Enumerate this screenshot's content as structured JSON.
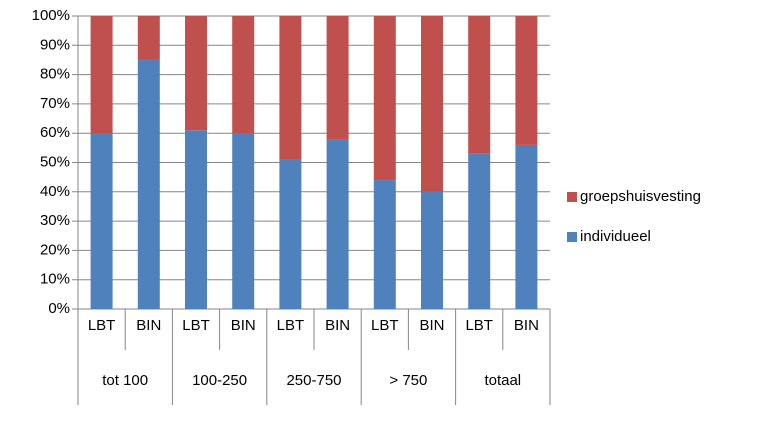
{
  "chart_data": {
    "type": "stacked_bar",
    "categories": [
      "LBT",
      "BIN",
      "LBT",
      "BIN",
      "LBT",
      "BIN",
      "LBT",
      "BIN",
      "LBT",
      "BIN"
    ],
    "groups": [
      "tot 100",
      "100-250",
      "250-750",
      "> 750",
      "totaal"
    ],
    "series": [
      {
        "name": "individueel",
        "color": "#4f81bd",
        "values": [
          60,
          85,
          61,
          60,
          51,
          58,
          44,
          40,
          53,
          56
        ]
      },
      {
        "name": "groepshuisvesting",
        "color": "#c0504d",
        "values": [
          40,
          15,
          39,
          40,
          49,
          42,
          56,
          60,
          47,
          44
        ]
      }
    ],
    "ylim": [
      0,
      100
    ],
    "yticks": [
      {
        "value": 0,
        "label": "0%"
      },
      {
        "value": 10,
        "label": "10%"
      },
      {
        "value": 20,
        "label": "20%"
      },
      {
        "value": 30,
        "label": "30%"
      },
      {
        "value": 40,
        "label": "40%"
      },
      {
        "value": 50,
        "label": "50%"
      },
      {
        "value": 60,
        "label": "60%"
      },
      {
        "value": 70,
        "label": "70%"
      },
      {
        "value": 80,
        "label": "80%"
      },
      {
        "value": 90,
        "label": "90%"
      },
      {
        "value": 100,
        "label": "100%"
      }
    ],
    "grid": true,
    "legend": "right"
  }
}
